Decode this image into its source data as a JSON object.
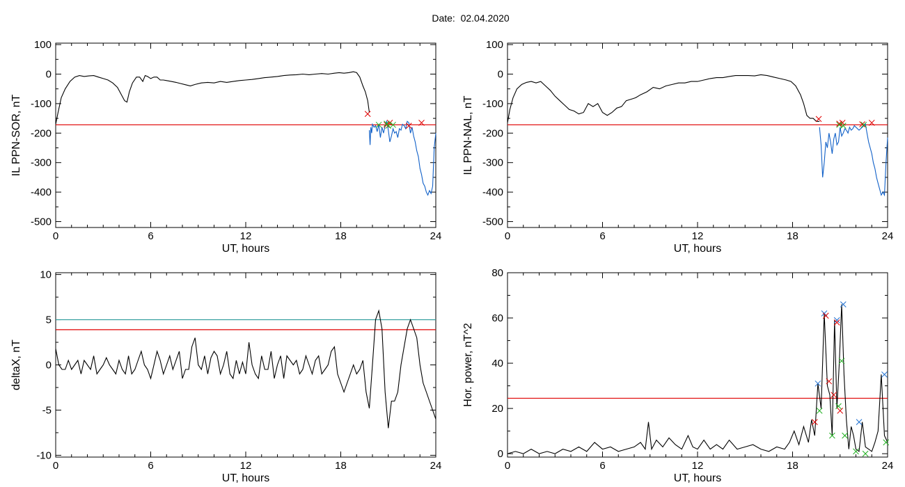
{
  "title": {
    "prefix": "Date:",
    "date": "02.04.2020"
  },
  "chart_data": [
    {
      "type": "line",
      "ylabel": "IL PPN-SOR, nT",
      "xlabel": "UT, hours",
      "xlim": [
        0,
        24
      ],
      "ylim": [
        -520,
        105
      ],
      "xticks": [
        0,
        6,
        12,
        18,
        24
      ],
      "yticks": [
        100,
        0,
        -100,
        -200,
        -300,
        -400,
        -500
      ],
      "threshold": -172,
      "series": [
        {
          "color": "#000000",
          "x": [
            0,
            0.15,
            0.35,
            0.6,
            0.9,
            1.2,
            1.5,
            1.8,
            2.1,
            2.4,
            2.7,
            3.0,
            3.3,
            3.6,
            3.9,
            4.15,
            4.35,
            4.5,
            4.65,
            4.85,
            5.1,
            5.3,
            5.5,
            5.65,
            5.8,
            6.0,
            6.2,
            6.4,
            6.6,
            6.8,
            7.0,
            7.3,
            7.6,
            7.9,
            8.2,
            8.5,
            8.8,
            9.2,
            9.6,
            10.0,
            10.4,
            10.8,
            11.2,
            11.6,
            12.0,
            12.4,
            12.8,
            13.2,
            13.6,
            14.0,
            14.4,
            14.8,
            15.2,
            15.6,
            16.0,
            16.4,
            16.8,
            17.2,
            17.6,
            17.9,
            18.2,
            18.5,
            18.8,
            19.0,
            19.2,
            19.4,
            19.55,
            19.7,
            19.8
          ],
          "y": [
            -170,
            -130,
            -80,
            -50,
            -25,
            -10,
            -5,
            -8,
            -6,
            -5,
            -10,
            -15,
            -20,
            -30,
            -45,
            -70,
            -90,
            -95,
            -60,
            -30,
            -10,
            -10,
            -25,
            -5,
            -8,
            -15,
            -10,
            -10,
            -20,
            -20,
            -22,
            -25,
            -28,
            -32,
            -36,
            -40,
            -35,
            -30,
            -28,
            -30,
            -25,
            -28,
            -25,
            -22,
            -20,
            -18,
            -15,
            -12,
            -10,
            -8,
            -5,
            -3,
            -2,
            0,
            -2,
            0,
            2,
            0,
            3,
            5,
            3,
            5,
            8,
            5,
            -10,
            -40,
            -60,
            -90,
            -130
          ]
        },
        {
          "color": "#1060c8",
          "x": [
            19.8,
            19.85,
            19.9,
            19.95,
            20.0,
            20.1,
            20.2,
            20.3,
            20.4,
            20.5,
            20.6,
            20.7,
            20.8,
            20.9,
            21.0,
            21.1,
            21.2,
            21.3,
            21.4,
            21.5,
            21.6,
            21.7,
            21.8,
            21.9,
            22.0,
            22.1,
            22.2,
            22.3,
            22.4,
            22.5,
            22.6,
            22.7,
            22.8,
            22.9,
            23.0,
            23.1,
            23.2,
            23.3,
            23.4,
            23.5,
            23.6,
            23.7,
            23.8,
            23.9,
            24.0
          ],
          "y": [
            -190,
            -240,
            -180,
            -200,
            -170,
            -180,
            -175,
            -195,
            -170,
            -215,
            -180,
            -200,
            -175,
            -160,
            -190,
            -230,
            -210,
            -185,
            -200,
            -195,
            -215,
            -185,
            -190,
            -170,
            -175,
            -185,
            -160,
            -165,
            -200,
            -180,
            -210,
            -230,
            -260,
            -280,
            -320,
            -340,
            -370,
            -380,
            -400,
            -410,
            -395,
            -405,
            -380,
            -250,
            -200
          ]
        }
      ],
      "markers": [
        {
          "color": "#e00000",
          "x": [
            19.7,
            20.9,
            21.1,
            22.3,
            23.1
          ],
          "y": [
            -135,
            -172,
            -165,
            -175,
            -165
          ]
        },
        {
          "color": "#20b020",
          "x": [
            20.4,
            20.9,
            21.0,
            21.3
          ],
          "y": [
            -172,
            -168,
            -175,
            -172
          ]
        }
      ]
    },
    {
      "type": "line",
      "ylabel": "IL PPN-NAL, nT",
      "xlabel": "UT, hours",
      "xlim": [
        0,
        24
      ],
      "ylim": [
        -520,
        105
      ],
      "xticks": [
        0,
        6,
        12,
        18,
        24
      ],
      "yticks": [
        100,
        0,
        -100,
        -200,
        -300,
        -400,
        -500
      ],
      "threshold": -172,
      "series": [
        {
          "color": "#000000",
          "x": [
            0,
            0.15,
            0.35,
            0.6,
            0.9,
            1.2,
            1.5,
            1.8,
            2.1,
            2.4,
            2.7,
            3.0,
            3.3,
            3.6,
            3.9,
            4.2,
            4.5,
            4.8,
            5.1,
            5.4,
            5.7,
            6.0,
            6.3,
            6.6,
            6.9,
            7.2,
            7.5,
            7.8,
            8.1,
            8.4,
            8.8,
            9.2,
            9.6,
            10.0,
            10.4,
            10.8,
            11.2,
            11.6,
            12.0,
            12.4,
            12.8,
            13.2,
            13.6,
            14.0,
            14.4,
            14.8,
            15.2,
            15.6,
            16.0,
            16.4,
            16.8,
            17.2,
            17.6,
            17.9,
            18.2,
            18.5,
            18.7,
            18.9,
            19.1,
            19.3,
            19.5,
            19.7
          ],
          "y": [
            -165,
            -120,
            -80,
            -50,
            -35,
            -28,
            -25,
            -30,
            -25,
            -40,
            -55,
            -75,
            -90,
            -105,
            -120,
            -125,
            -135,
            -130,
            -100,
            -110,
            -100,
            -130,
            -140,
            -130,
            -115,
            -110,
            -90,
            -85,
            -80,
            -70,
            -60,
            -45,
            -50,
            -40,
            -35,
            -30,
            -30,
            -25,
            -25,
            -20,
            -15,
            -12,
            -12,
            -8,
            -5,
            -5,
            -5,
            -6,
            -2,
            -5,
            -10,
            -15,
            -20,
            -25,
            -40,
            -70,
            -100,
            -140,
            -150,
            -150,
            -160,
            -160
          ]
        },
        {
          "color": "#1060c8",
          "x": [
            19.7,
            19.8,
            19.9,
            20.0,
            20.1,
            20.2,
            20.3,
            20.4,
            20.5,
            20.6,
            20.7,
            20.8,
            20.9,
            21.0,
            21.1,
            21.2,
            21.3,
            21.4,
            21.5,
            21.6,
            21.7,
            21.8,
            21.9,
            22.0,
            22.2,
            22.4,
            22.5,
            22.6,
            22.7,
            22.8,
            22.9,
            23.0,
            23.1,
            23.2,
            23.3,
            23.4,
            23.5,
            23.6,
            23.7,
            23.8,
            23.9,
            24.0
          ],
          "y": [
            -180,
            -240,
            -350,
            -300,
            -230,
            -250,
            -200,
            -230,
            -270,
            -220,
            -200,
            -240,
            -230,
            -180,
            -210,
            -200,
            -185,
            -190,
            -200,
            -180,
            -190,
            -185,
            -175,
            -180,
            -190,
            -180,
            -175,
            -170,
            -200,
            -230,
            -250,
            -270,
            -300,
            -320,
            -350,
            -370,
            -390,
            -410,
            -400,
            -410,
            -300,
            -215
          ]
        }
      ],
      "markers": [
        {
          "color": "#e00000",
          "x": [
            19.65,
            20.95,
            21.15,
            22.4,
            23.0
          ],
          "y": [
            -152,
            -168,
            -165,
            -170,
            -165
          ]
        },
        {
          "color": "#20b020",
          "x": [
            20.95,
            21.2,
            22.5
          ],
          "y": [
            -172,
            -175,
            -172
          ]
        }
      ]
    },
    {
      "type": "line",
      "ylabel": "deltaX, nT",
      "xlabel": "UT, hours",
      "xlim": [
        0,
        24
      ],
      "ylim": [
        -10.2,
        10.2
      ],
      "xticks": [
        0,
        6,
        12,
        18,
        24
      ],
      "yticks": [
        10,
        5,
        0,
        -5,
        -10
      ],
      "threshold": 3.9,
      "threshold2": 5.0,
      "series": [
        {
          "color": "#000000",
          "x": [
            0,
            0.2,
            0.4,
            0.6,
            0.8,
            1.0,
            1.2,
            1.4,
            1.6,
            1.8,
            2.0,
            2.2,
            2.4,
            2.6,
            2.8,
            3.0,
            3.2,
            3.4,
            3.6,
            3.8,
            4.0,
            4.2,
            4.4,
            4.6,
            4.8,
            5.0,
            5.2,
            5.4,
            5.6,
            5.8,
            6.0,
            6.2,
            6.4,
            6.6,
            6.8,
            7.0,
            7.2,
            7.4,
            7.6,
            7.8,
            8.0,
            8.2,
            8.4,
            8.6,
            8.8,
            9.0,
            9.2,
            9.4,
            9.6,
            9.8,
            10.0,
            10.2,
            10.4,
            10.6,
            10.8,
            11.0,
            11.2,
            11.4,
            11.6,
            11.8,
            12.0,
            12.2,
            12.4,
            12.6,
            12.8,
            13.0,
            13.2,
            13.4,
            13.6,
            13.8,
            14.0,
            14.2,
            14.4,
            14.6,
            14.8,
            15.0,
            15.2,
            15.4,
            15.6,
            15.8,
            16.0,
            16.2,
            16.4,
            16.6,
            16.8,
            17.0,
            17.2,
            17.4,
            17.6,
            17.8,
            18.0,
            18.2,
            18.4,
            18.6,
            18.8,
            19.0,
            19.2,
            19.4,
            19.6,
            19.8,
            20.0,
            20.2,
            20.4,
            20.6,
            20.8,
            21.0,
            21.2,
            21.4,
            21.6,
            21.8,
            22.0,
            22.2,
            22.4,
            22.6,
            22.8,
            23.0,
            23.2,
            23.4,
            23.6,
            23.8,
            24.0
          ],
          "y": [
            1.8,
            0,
            -0.5,
            -0.5,
            0.5,
            -0.5,
            0,
            0.5,
            -1,
            0.5,
            0,
            -0.5,
            1,
            -1,
            -0.5,
            0,
            0.8,
            0,
            -0.5,
            -1,
            0.5,
            -0.5,
            -1,
            1,
            -1,
            -0.5,
            0.5,
            1.5,
            0,
            -0.5,
            -1.5,
            0,
            1.5,
            0.5,
            -1,
            0,
            1,
            -0.5,
            0.5,
            1.5,
            -1.5,
            -0.5,
            -0.5,
            2,
            3,
            0,
            -0.5,
            1,
            -1,
            0.8,
            1.5,
            1,
            -1,
            0,
            1.5,
            -1,
            -1.5,
            0.5,
            -1,
            0.3,
            -1,
            2.5,
            0,
            -1,
            -1.5,
            1,
            -0.5,
            -0.5,
            1.5,
            -1.5,
            0,
            1,
            -1.5,
            1,
            0.5,
            0,
            0.5,
            -1,
            -0.5,
            1,
            0,
            -1,
            0.5,
            1,
            -1,
            -0.5,
            0,
            1.5,
            2,
            -1,
            -2,
            -3,
            -2,
            -1,
            0,
            -1,
            -0.5,
            0.5,
            -3,
            -4.8,
            0,
            5,
            6,
            4,
            -3,
            -7,
            -4,
            -4,
            -3,
            0,
            2,
            4,
            5,
            4,
            3,
            0,
            -2,
            -3,
            -4,
            -5,
            -6
          ]
        }
      ]
    },
    {
      "type": "line",
      "ylabel": "Hor. power, nT^2",
      "xlabel": "UT, hours",
      "xlim": [
        0,
        24
      ],
      "ylim": [
        -1.5,
        80
      ],
      "xticks": [
        0,
        6,
        12,
        18,
        24
      ],
      "yticks": [
        80,
        60,
        40,
        20,
        0
      ],
      "threshold": 24.5,
      "series": [
        {
          "color": "#000000",
          "x": [
            0,
            0.5,
            1.0,
            1.5,
            2.0,
            2.5,
            3.0,
            3.5,
            4.0,
            4.5,
            5.0,
            5.5,
            6.0,
            6.5,
            7.0,
            7.5,
            8.0,
            8.4,
            8.7,
            8.9,
            9.1,
            9.4,
            9.8,
            10.2,
            10.6,
            11.0,
            11.4,
            11.7,
            12.0,
            12.4,
            12.8,
            13.2,
            13.6,
            14.0,
            14.5,
            15.0,
            15.5,
            16.0,
            16.5,
            17.0,
            17.5,
            17.8,
            18.1,
            18.4,
            18.7,
            19.0,
            19.2,
            19.4,
            19.6,
            19.8,
            20.0,
            20.2,
            20.35,
            20.5,
            20.65,
            20.8,
            20.95,
            21.1,
            21.25,
            21.4,
            21.55,
            21.7,
            21.85,
            22.0,
            22.2,
            22.4,
            22.6,
            22.8,
            23.0,
            23.2,
            23.4,
            23.6,
            23.8,
            24.0
          ],
          "y": [
            0,
            1,
            0,
            2,
            0,
            1,
            0,
            2,
            1,
            3,
            1,
            5,
            2,
            3,
            1,
            2,
            3,
            5,
            2,
            14,
            2,
            6,
            3,
            7,
            4,
            2,
            8,
            3,
            2,
            6,
            2,
            4,
            2,
            6,
            2,
            3,
            4,
            2,
            1,
            3,
            2,
            5,
            10,
            4,
            12,
            5,
            15,
            8,
            31,
            20,
            62,
            30,
            26,
            8,
            59,
            20,
            40,
            66,
            35,
            15,
            2,
            12,
            8,
            2,
            1,
            14,
            3,
            2,
            1,
            5,
            10,
            35,
            8,
            5
          ]
        }
      ],
      "markers": [
        {
          "color": "#2070d0",
          "x": [
            19.6,
            20.0,
            20.8,
            21.2,
            22.2,
            23.8
          ],
          "y": [
            31,
            62,
            59,
            66,
            14,
            35
          ]
        },
        {
          "color": "#e00000",
          "x": [
            19.4,
            20.1,
            20.3,
            20.6,
            20.8,
            21.0
          ],
          "y": [
            14,
            61,
            32,
            26,
            58,
            19
          ]
        },
        {
          "color": "#20b020",
          "x": [
            19.7,
            20.5,
            20.9,
            21.1,
            21.3,
            22.0,
            22.6,
            23.9
          ],
          "y": [
            19,
            8,
            21,
            41,
            8,
            1,
            0,
            5
          ]
        }
      ]
    }
  ]
}
